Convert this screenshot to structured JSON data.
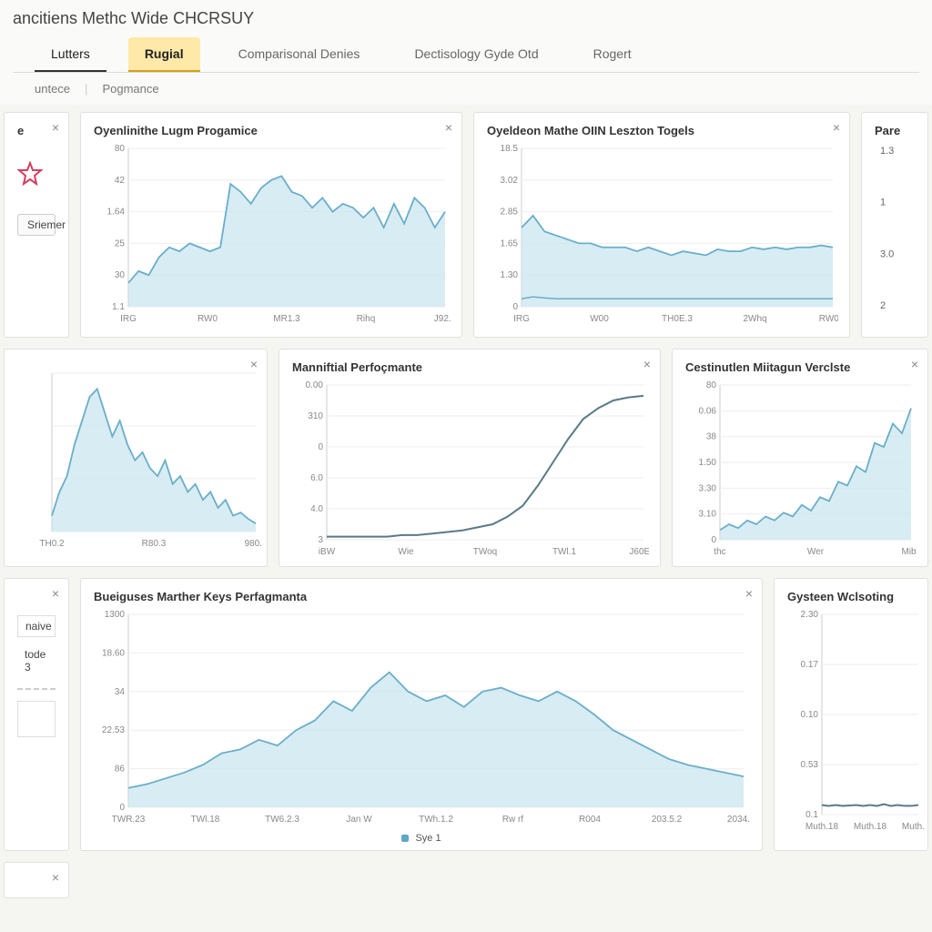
{
  "header": {
    "title": "ancitiens Methc Wide  CHCRSUY"
  },
  "tabs": [
    {
      "label": "Lutters",
      "state": "first"
    },
    {
      "label": "Rugial",
      "state": "active"
    },
    {
      "label": "Comparisonal Denies",
      "state": ""
    },
    {
      "label": "Dectisology Gyde Otd",
      "state": ""
    },
    {
      "label": "Rogert",
      "state": ""
    }
  ],
  "breadcrumb": [
    "untece",
    "Pogmance"
  ],
  "colors": {
    "area_fill": "#c7e4ef",
    "area_stroke": "#6aaec9",
    "line_stroke": "#5a7a88",
    "grid": "#eeeeee",
    "axis": "#cccccc",
    "bg": "#ffffff"
  },
  "row1": {
    "stub": {
      "title_fragment": "e",
      "button_label": "Sriemer"
    },
    "chart1": {
      "title": "Oyenlinithe Lugm Progamice",
      "type": "area",
      "yticks": [
        "80",
        "42",
        "1.64",
        "25",
        "30",
        "1.1"
      ],
      "xticks": [
        "IRG",
        "RW0",
        "MR1.3",
        "Rihq",
        "J92.1"
      ],
      "ylim": [
        0,
        80
      ],
      "values": [
        12,
        18,
        16,
        25,
        30,
        28,
        32,
        30,
        28,
        30,
        62,
        58,
        52,
        60,
        64,
        66,
        58,
        56,
        50,
        55,
        48,
        52,
        50,
        45,
        50,
        40,
        52,
        42,
        55,
        50,
        40,
        48
      ]
    },
    "chart2": {
      "title": "Oyeldeon Mathe OIIN Leszton Togels",
      "type": "area",
      "yticks": [
        "18.5",
        "3.02",
        "2.85",
        "1.65",
        "1.30",
        "0"
      ],
      "xticks": [
        "IRG",
        "W00",
        "TH0E.3",
        "2Whq",
        "RW0.0"
      ],
      "ylim": [
        0,
        4
      ],
      "values": [
        2.0,
        2.3,
        1.9,
        1.8,
        1.7,
        1.6,
        1.6,
        1.5,
        1.5,
        1.5,
        1.4,
        1.5,
        1.4,
        1.3,
        1.4,
        1.35,
        1.3,
        1.45,
        1.4,
        1.4,
        1.5,
        1.45,
        1.5,
        1.45,
        1.5,
        1.5,
        1.55,
        1.5
      ],
      "baseline": [
        0.2,
        0.25,
        0.22,
        0.2,
        0.2,
        0.2,
        0.2,
        0.2,
        0.2,
        0.2,
        0.2,
        0.2,
        0.2,
        0.2,
        0.2,
        0.2,
        0.2,
        0.2,
        0.2,
        0.2,
        0.2,
        0.2,
        0.2,
        0.2,
        0.2,
        0.2,
        0.2,
        0.2
      ]
    },
    "chart3": {
      "title": "Pare",
      "yticks": [
        "1.3",
        "1",
        "3.0",
        "2"
      ]
    }
  },
  "row2": {
    "chart_left": {
      "type": "area",
      "yticks": [
        "",
        "",
        "",
        ""
      ],
      "xticks": [
        "TH0.2",
        "R80.3",
        "980.3"
      ],
      "ylim": [
        0,
        100
      ],
      "values": [
        10,
        25,
        35,
        55,
        70,
        85,
        90,
        75,
        60,
        70,
        55,
        45,
        50,
        40,
        35,
        45,
        30,
        35,
        25,
        30,
        20,
        25,
        15,
        20,
        10,
        12,
        8,
        5
      ]
    },
    "chart_mid": {
      "title": "Manniftial Perfoçmante",
      "type": "line",
      "yticks": [
        "0.00",
        "310",
        "0",
        "6.0",
        "4.0",
        "3"
      ],
      "xticks": [
        "iBW",
        "Wie",
        "TWoq",
        "TWl.1",
        "J60E.3"
      ],
      "ylim": [
        0,
        100
      ],
      "values": [
        2,
        2,
        2,
        2,
        2,
        3,
        3,
        4,
        5,
        6,
        8,
        10,
        15,
        22,
        35,
        50,
        65,
        78,
        85,
        90,
        92,
        93
      ]
    },
    "chart_right": {
      "title": "Cestinutlen Miitagun Verclste",
      "type": "area",
      "yticks": [
        "80",
        "0.06",
        "38",
        "1.50",
        "3.30",
        "3.10",
        "0"
      ],
      "xticks": [
        "thc",
        "Wer",
        "Miby"
      ],
      "ylim": [
        0,
        80
      ],
      "values": [
        5,
        8,
        6,
        10,
        8,
        12,
        10,
        14,
        12,
        18,
        15,
        22,
        20,
        30,
        28,
        38,
        35,
        50,
        48,
        60,
        55,
        68
      ]
    }
  },
  "row3": {
    "side": {
      "btn1": "naive",
      "line2": "tode  3"
    },
    "chart_main": {
      "title": "Bueiguses Marther Keys Perfagmanta",
      "type": "area",
      "yticks": [
        "1300",
        "18.60",
        "34",
        "22.53",
        "86",
        "0"
      ],
      "xticks": [
        "TWR.23",
        "TWl.18",
        "TW6.2.3",
        "Jan W",
        "TWh.1.2",
        "Rw rf",
        "R004",
        "203.5.2",
        "2034.10"
      ],
      "legend_label": "Sye 1",
      "ylim": [
        0,
        100
      ],
      "values": [
        10,
        12,
        15,
        18,
        22,
        28,
        30,
        35,
        32,
        40,
        45,
        55,
        50,
        62,
        70,
        60,
        55,
        58,
        52,
        60,
        62,
        58,
        55,
        60,
        55,
        48,
        40,
        35,
        30,
        25,
        22,
        20,
        18,
        16
      ]
    },
    "chart_right": {
      "title": "Gysteen Wclsoting",
      "type": "line",
      "yticks": [
        "2.30",
        "0.17",
        "0.10",
        "0.53",
        "0.1"
      ],
      "xticks": [
        "Muth.18",
        "Muth.18",
        "Muth.18"
      ],
      "ylim": [
        0,
        2.3
      ],
      "values": [
        0.11,
        0.1,
        0.11,
        0.1,
        0.105,
        0.11,
        0.1,
        0.11,
        0.1,
        0.12,
        0.1,
        0.11,
        0.1,
        0.1,
        0.11
      ]
    }
  }
}
